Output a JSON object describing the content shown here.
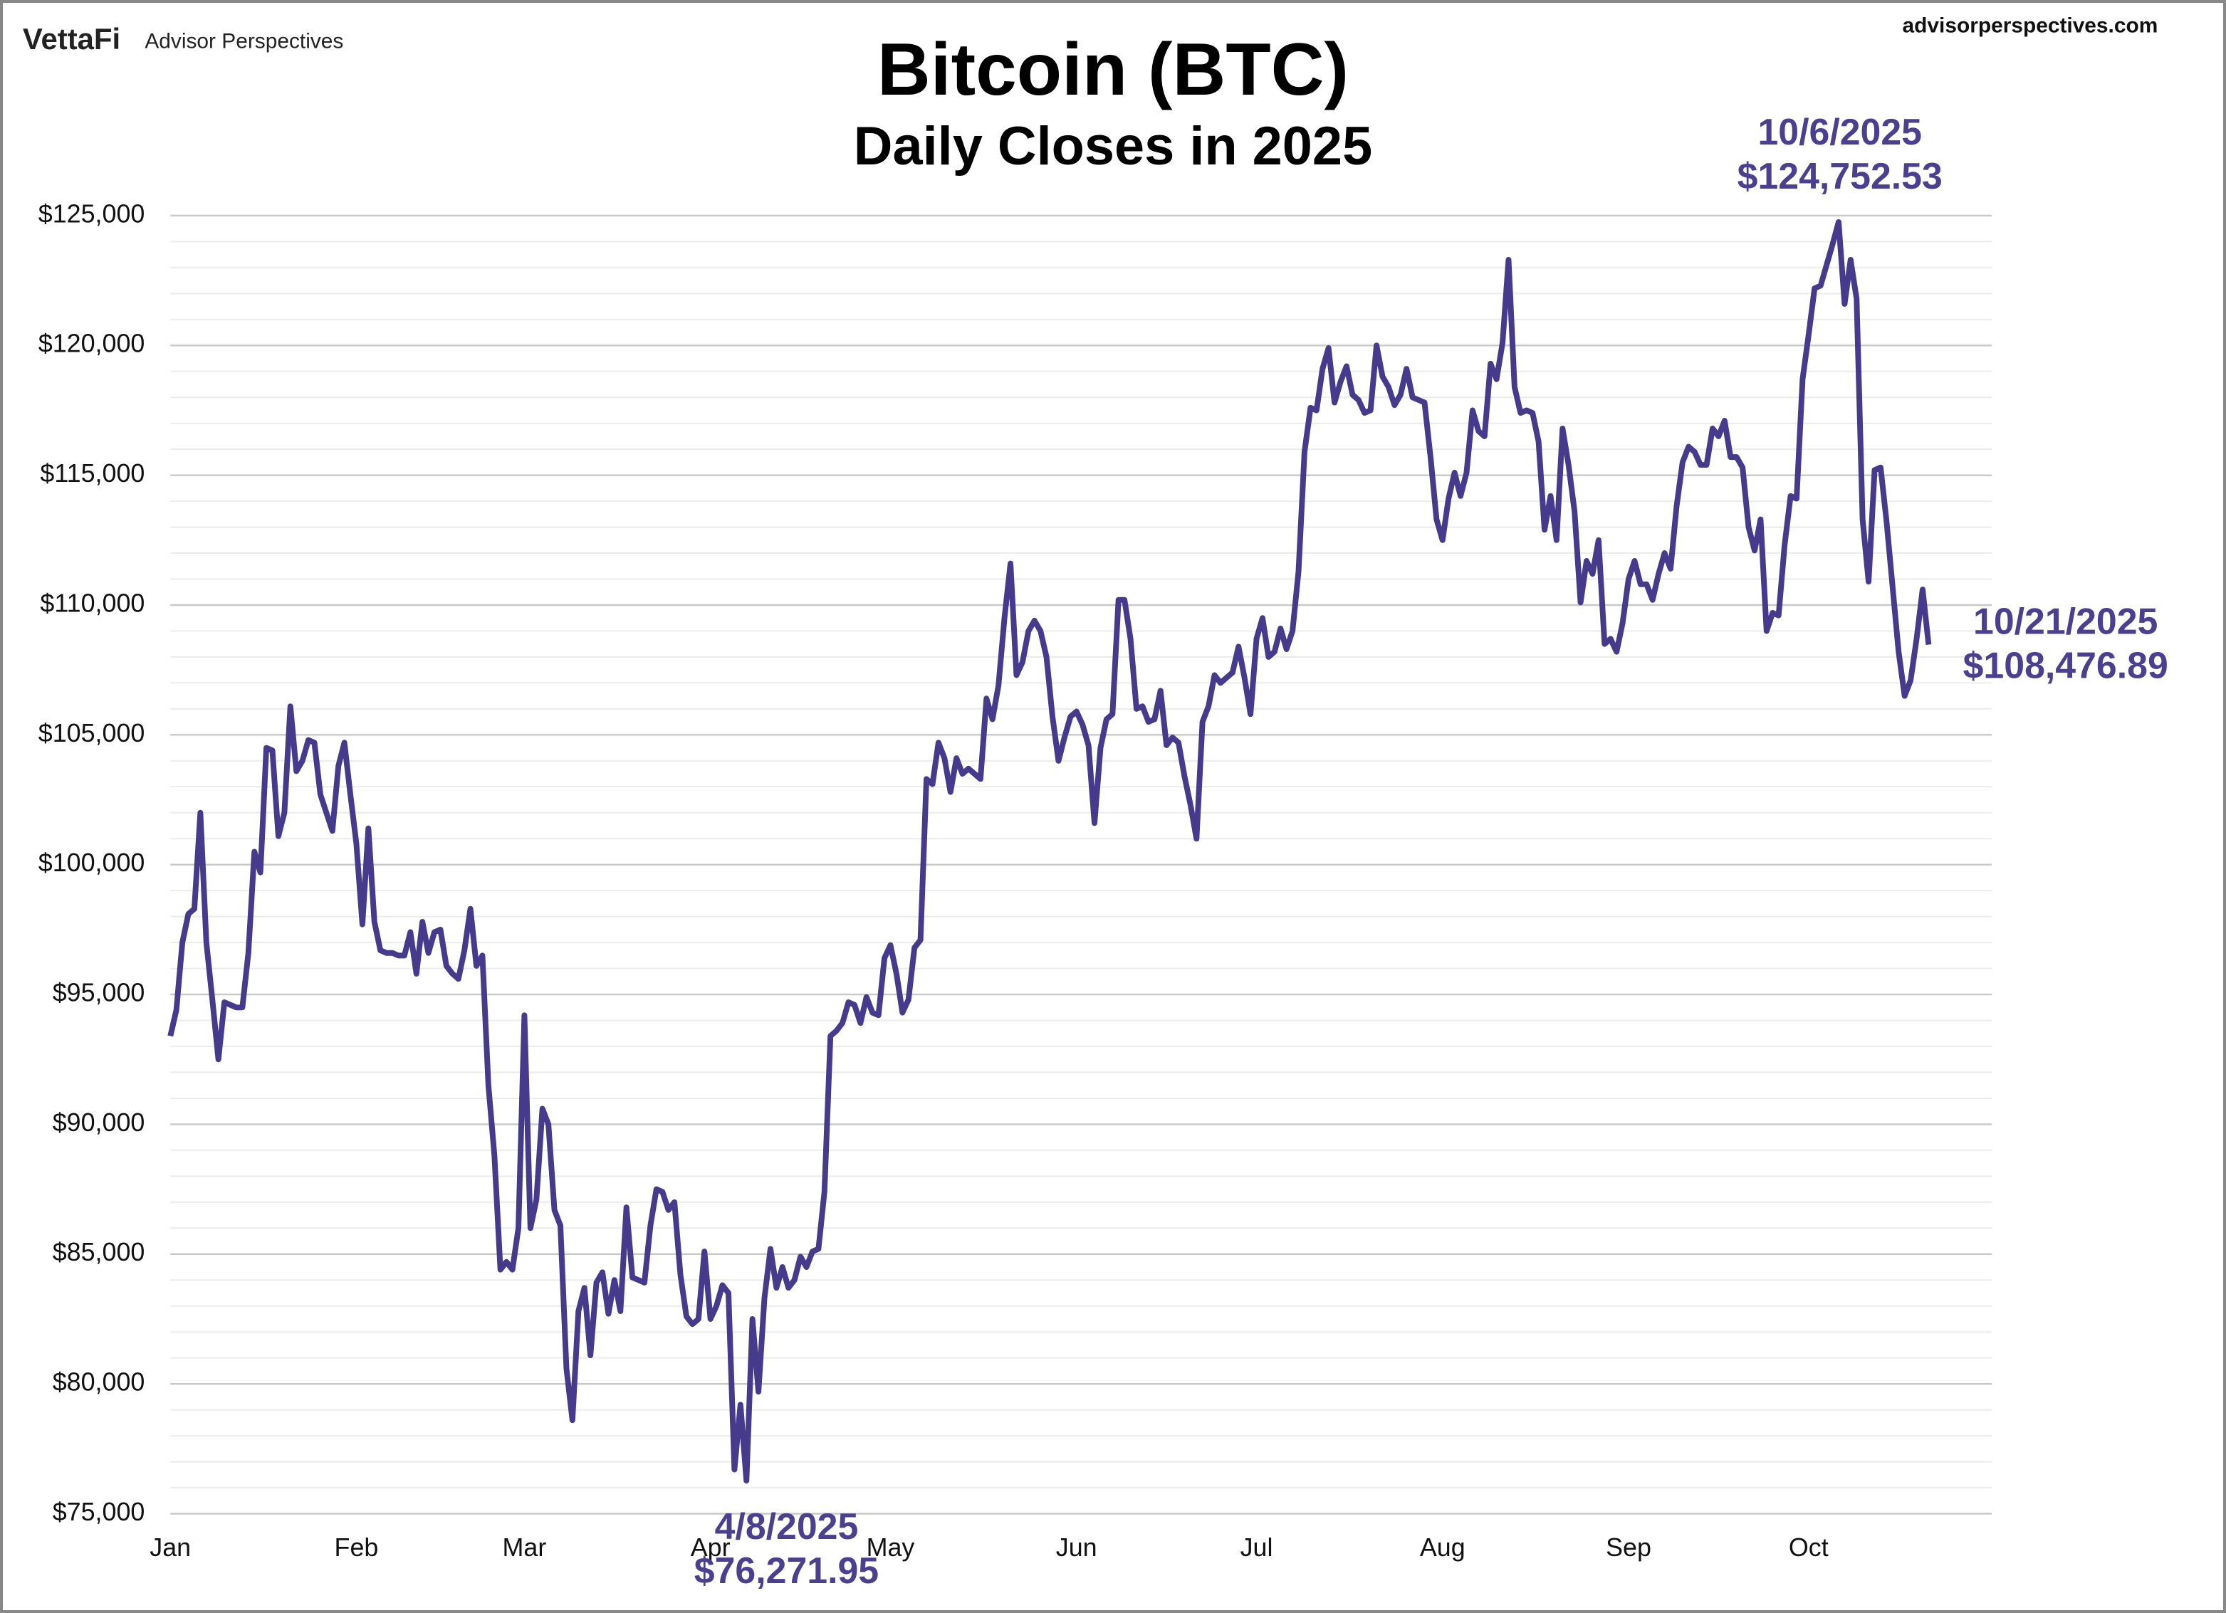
{
  "header": {
    "brand": "VettaFi",
    "brand_sub": "Advisor Perspectives",
    "site": "advisorperspectives.com"
  },
  "chart_data": {
    "type": "line",
    "title": "Bitcoin (BTC)",
    "subtitle": "Daily Closes in 2025",
    "color": "#463a8c",
    "grid": true,
    "ylim": [
      75000,
      125000
    ],
    "yticks": [
      {
        "value": 75000,
        "label": "$75,000"
      },
      {
        "value": 80000,
        "label": "$80,000"
      },
      {
        "value": 85000,
        "label": "$85,000"
      },
      {
        "value": 90000,
        "label": "$90,000"
      },
      {
        "value": 95000,
        "label": "$95,000"
      },
      {
        "value": 100000,
        "label": "$100,000"
      },
      {
        "value": 105000,
        "label": "$105,000"
      },
      {
        "value": 110000,
        "label": "$110,000"
      },
      {
        "value": 115000,
        "label": "$115,000"
      },
      {
        "value": 120000,
        "label": "$120,000"
      },
      {
        "value": 125000,
        "label": "$125,000"
      }
    ],
    "minor_yticks": [
      76000,
      77000,
      78000,
      79000,
      81000,
      82000,
      83000,
      84000,
      86000,
      87000,
      88000,
      89000,
      91000,
      92000,
      93000,
      94000,
      96000,
      97000,
      98000,
      99000,
      101000,
      102000,
      103000,
      104000,
      106000,
      107000,
      108000,
      109000,
      111000,
      112000,
      113000,
      114000,
      116000,
      117000,
      118000,
      119000,
      121000,
      122000,
      123000,
      124000
    ],
    "categories": [
      "Jan",
      null,
      null,
      null,
      null,
      null,
      null,
      null,
      null,
      null,
      null,
      null,
      null,
      null,
      null,
      null,
      null,
      null,
      null,
      null,
      null,
      null,
      null,
      null,
      null,
      null,
      null,
      null,
      null,
      null,
      null,
      "Feb",
      null,
      null,
      null,
      null,
      null,
      null,
      null,
      null,
      null,
      null,
      null,
      null,
      null,
      null,
      null,
      null,
      null,
      null,
      null,
      null,
      null,
      null,
      null,
      null,
      null,
      null,
      null,
      "Mar",
      null,
      null,
      null,
      null,
      null,
      null,
      null,
      null,
      null,
      null,
      null,
      null,
      null,
      null,
      null,
      null,
      null,
      null,
      null,
      null,
      null,
      null,
      null,
      null,
      null,
      null,
      null,
      null,
      null,
      null,
      "Apr",
      null,
      null,
      null,
      null,
      null,
      null,
      null,
      null,
      null,
      null,
      null,
      null,
      null,
      null,
      null,
      null,
      null,
      null,
      null,
      null,
      null,
      null,
      null,
      null,
      null,
      null,
      null,
      null,
      null,
      "May",
      null,
      null,
      null,
      null,
      null,
      null,
      null,
      null,
      null,
      null,
      null,
      null,
      null,
      null,
      null,
      null,
      null,
      null,
      null,
      null,
      null,
      null,
      null,
      null,
      null,
      null,
      null,
      null,
      null,
      null,
      "Jun",
      null,
      null,
      null,
      null,
      null,
      null,
      null,
      null,
      null,
      null,
      null,
      null,
      null,
      null,
      null,
      null,
      null,
      null,
      null,
      null,
      null,
      null,
      null,
      null,
      null,
      null,
      null,
      null,
      null,
      "Jul",
      null,
      null,
      null,
      null,
      null,
      null,
      null,
      null,
      null,
      null,
      null,
      null,
      null,
      null,
      null,
      null,
      null,
      null,
      null,
      null,
      null,
      null,
      null,
      null,
      null,
      null,
      null,
      null,
      null,
      null,
      "Aug",
      null,
      null,
      null,
      null,
      null,
      null,
      null,
      null,
      null,
      null,
      null,
      null,
      null,
      null,
      null,
      null,
      null,
      null,
      null,
      null,
      null,
      null,
      null,
      null,
      null,
      null,
      null,
      null,
      null,
      null,
      "Sep",
      null,
      null,
      null,
      null,
      null,
      null,
      null,
      null,
      null,
      null,
      null,
      null,
      null,
      null,
      null,
      null,
      null,
      null,
      null,
      null,
      null,
      null,
      null,
      null,
      null,
      null,
      null,
      null,
      null,
      "Oct",
      null,
      null,
      null,
      null,
      null,
      null,
      null,
      null,
      null,
      null,
      null,
      null,
      null,
      null,
      null,
      null,
      null,
      null,
      null,
      null
    ],
    "values": [
      93400,
      94400,
      97000,
      98100,
      98300,
      102000,
      97000,
      94800,
      92500,
      94700,
      94600,
      94500,
      94500,
      96600,
      100500,
      99700,
      104500,
      104400,
      101100,
      102000,
      106100,
      103600,
      104000,
      104800,
      104700,
      102700,
      102000,
      101300,
      103800,
      104700,
      102700,
      100800,
      97700,
      101400,
      97800,
      96700,
      96600,
      96600,
      96500,
      96500,
      97400,
      95800,
      97800,
      96600,
      97400,
      97500,
      96100,
      95800,
      95600,
      96700,
      98300,
      96100,
      96500,
      91500,
      88800,
      84400,
      84700,
      84400,
      86000,
      94200,
      86000,
      87100,
      90600,
      90000,
      86700,
      86100,
      80600,
      78600,
      82800,
      83700,
      81100,
      83900,
      84300,
      82700,
      84000,
      82800,
      86800,
      84100,
      84000,
      83900,
      86100,
      87500,
      87400,
      86700,
      87000,
      84200,
      82600,
      82300,
      82500,
      85100,
      82500,
      83000,
      83800,
      83500,
      76700,
      79200,
      76271.95,
      82500,
      79700,
      83300,
      85200,
      83700,
      84500,
      83700,
      84000,
      84900,
      84500,
      85100,
      85200,
      87400,
      93400,
      93600,
      93900,
      94700,
      94600,
      93900,
      94900,
      94300,
      94200,
      96400,
      96900,
      95800,
      94300,
      94800,
      96800,
      97100,
      103300,
      103100,
      104700,
      104100,
      102800,
      104100,
      103500,
      103700,
      103500,
      103300,
      106400,
      105600,
      106900,
      109500,
      111600,
      107300,
      107800,
      109000,
      109400,
      109000,
      108000,
      105700,
      104000,
      104900,
      105700,
      105900,
      105400,
      104600,
      101600,
      104500,
      105600,
      105800,
      110200,
      110200,
      108700,
      106000,
      106100,
      105500,
      105600,
      106700,
      104600,
      104900,
      104700,
      103400,
      102300,
      101000,
      105500,
      106100,
      107300,
      107000,
      107200,
      107400,
      108400,
      107200,
      105800,
      108700,
      109500,
      108000,
      108200,
      109100,
      108300,
      109000,
      111300,
      115900,
      117600,
      117500,
      119100,
      119900,
      117800,
      118600,
      119200,
      118100,
      117900,
      117400,
      117500,
      120000,
      118800,
      118400,
      117700,
      118100,
      119100,
      118000,
      117900,
      117800,
      115700,
      113300,
      112500,
      114100,
      115100,
      114200,
      115100,
      117500,
      116700,
      116500,
      119300,
      118700,
      120100,
      123300,
      118400,
      117400,
      117500,
      117400,
      116300,
      112900,
      114200,
      112500,
      116800,
      115400,
      113600,
      110100,
      111700,
      111200,
      112500,
      108500,
      108700,
      108200,
      109300,
      111000,
      111700,
      110800,
      110800,
      110200,
      111200,
      112000,
      111400,
      113800,
      115500,
      116100,
      115900,
      115400,
      115400,
      116800,
      116500,
      117100,
      115700,
      115700,
      115300,
      113000,
      112100,
      113300,
      109000,
      109700,
      109600,
      112300,
      114200,
      114100,
      118700,
      120400,
      122200,
      122300,
      123100,
      123900,
      124752.53,
      121600,
      123300,
      121800,
      113300,
      110900,
      115200,
      115300,
      113200,
      110700,
      108200,
      106500,
      107100,
      108700,
      110600,
      108476.89
    ],
    "annotations": [
      {
        "date": "10/6/2025",
        "price": "$124,752.53"
      },
      {
        "date": "10/21/2025",
        "price": "$108,476.89"
      },
      {
        "date": "4/8/2025",
        "price": "$76,271.95"
      }
    ]
  }
}
